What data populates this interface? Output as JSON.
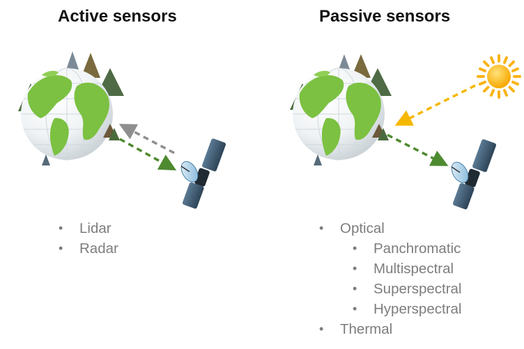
{
  "active": {
    "title": "Active sensors",
    "items": [
      "Lidar",
      "Radar"
    ]
  },
  "passive": {
    "title": "Passive sensors",
    "optical": "Optical",
    "optical_types": [
      "Panchromatic",
      "Multispectral",
      "Superspectral",
      "Hyperspectral"
    ],
    "thermal": "Thermal"
  },
  "colors": {
    "ocean": "#ffffff",
    "land": "#7cc142",
    "tree": "#4a6b3d",
    "sun": "#fbb315",
    "arrow_green": "#4e8a2f",
    "arrow_gray": "#8f8f8f",
    "arrow_yellow": "#f5b800",
    "satellite_panel": "#3d5a73",
    "bullet_text": "#7d7d7d"
  },
  "icons": [
    "globe-icon",
    "tree-icon",
    "satellite-icon",
    "sun-icon"
  ]
}
